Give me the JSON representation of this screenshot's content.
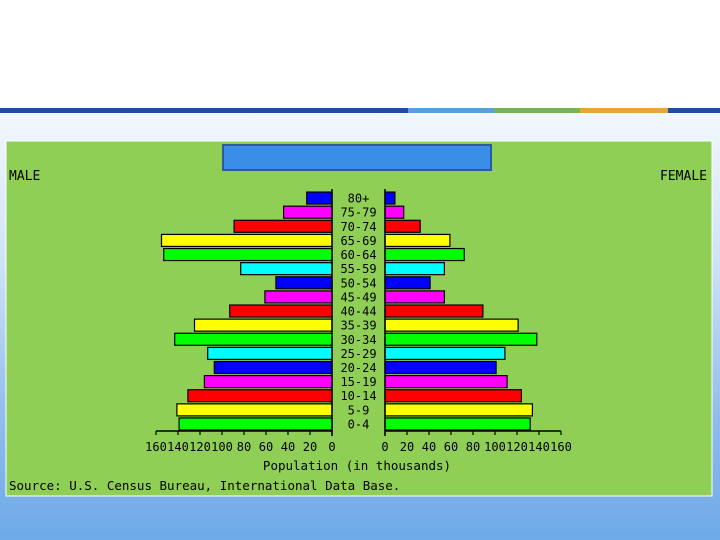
{
  "slide": {
    "accent_colors": [
      "#1f4e9e",
      "#5aa0d8",
      "#77b25a",
      "#e8a53a",
      "#1f4e9e"
    ]
  },
  "chart_data": {
    "type": "bar",
    "orientation": "horizontal-back-to-back",
    "title": "",
    "left_label": "MALE",
    "right_label": "FEMALE",
    "xlabel": "Population (in thousands)",
    "source": "Source: U.S. Census Bureau, International Data Base.",
    "xlim": [
      0,
      160
    ],
    "x_ticks": [
      160,
      140,
      120,
      100,
      80,
      60,
      40,
      20,
      0
    ],
    "categories": [
      "0-4",
      "5-9",
      "10-14",
      "15-19",
      "20-24",
      "25-29",
      "30-34",
      "35-39",
      "40-44",
      "45-49",
      "50-54",
      "55-59",
      "60-64",
      "65-69",
      "70-74",
      "75-79",
      "80+"
    ],
    "series": [
      {
        "name": "MALE",
        "values": [
          139,
          141,
          131,
          116,
          107,
          113,
          143,
          125,
          93,
          61,
          51,
          83,
          153,
          155,
          89,
          44,
          23
        ]
      },
      {
        "name": "FEMALE",
        "values": [
          132,
          134,
          124,
          111,
          101,
          109,
          138,
          121,
          89,
          54,
          41,
          54,
          72,
          59,
          32,
          17,
          9
        ]
      }
    ],
    "bar_colors": [
      "#00ff00",
      "#ffff00",
      "#ff0000",
      "#ff00ff",
      "#0000ff",
      "#00ffff",
      "#00ff00",
      "#ffff00",
      "#ff0000",
      "#ff00ff",
      "#0000ff",
      "#00ffff",
      "#00ff00",
      "#ffff00",
      "#ff0000",
      "#ff00ff",
      "#0000ff"
    ],
    "background_color": "#8fcf55",
    "title_box_color": "#3a8ee8",
    "grid": false
  }
}
